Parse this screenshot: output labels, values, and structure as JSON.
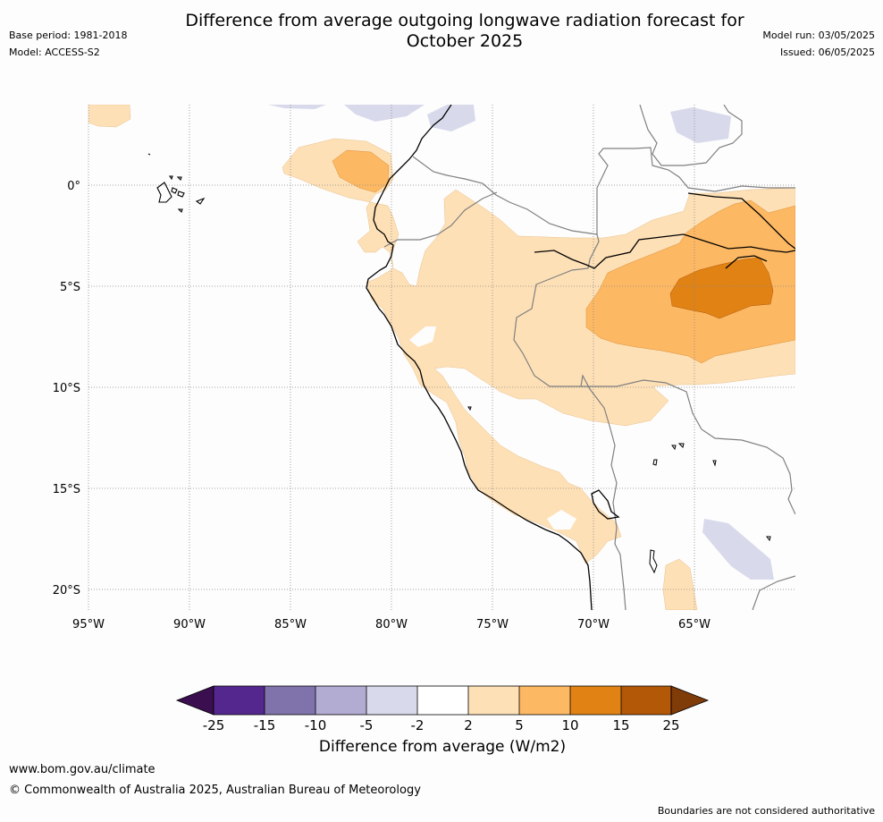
{
  "header": {
    "title_line1": "Difference from average outgoing longwave radiation forecast for",
    "title_line2": "October 2025",
    "base_period": "Base period: 1981-2018",
    "model": "Model: ACCESS-S2",
    "model_run": "Model run: 03/05/2025",
    "issued": "Issued: 06/05/2025"
  },
  "map": {
    "lon_labels": [
      "95°W",
      "90°W",
      "85°W",
      "80°W",
      "75°W",
      "70°W",
      "65°W"
    ],
    "lat_labels": [
      "0°",
      "5°S",
      "10°S",
      "15°S",
      "20°S"
    ],
    "gridlines": "dotted"
  },
  "colorbar": {
    "title": "Difference from average (W/m2)",
    "ticks": [
      "-25",
      "-15",
      "-10",
      "-5",
      "-2",
      "2",
      "5",
      "10",
      "15",
      "25"
    ],
    "colors": {
      "below_-25": "#3b0f4f",
      "-25_-15": "#54278f",
      "-15_-10": "#8073ac",
      "-10_-5": "#b2abd2",
      "-5_-2": "#d8daeb",
      "-2_2": "#ffffff",
      "2_5": "#fee0b6",
      "5_10": "#fdb863",
      "10_15": "#e08214",
      "15_25": "#b35806",
      "above_25": "#7f3b08"
    }
  },
  "footer": {
    "website": "www.bom.gov.au/climate",
    "copyright": "© Commonwealth of Australia 2025, Australian Bureau of Meteorology",
    "disclaimer": "Boundaries are not considered authoritative"
  }
}
